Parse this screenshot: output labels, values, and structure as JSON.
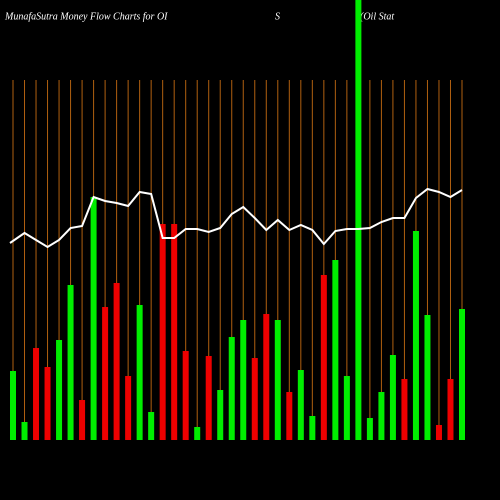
{
  "chart_data": {
    "type": "bar",
    "title_parts": [
      "MunafaSutra  Money Flow  Charts for OI",
      "S",
      "(Oil Stat"
    ],
    "categories": [
      null,
      null,
      null,
      null,
      null,
      null,
      null,
      null,
      null,
      null,
      null,
      null,
      null,
      null,
      null,
      null,
      null,
      null,
      null,
      null,
      null,
      null,
      null,
      null,
      null,
      null,
      null,
      null,
      null,
      null,
      null,
      null,
      null,
      null,
      null,
      null,
      null,
      null,
      null,
      null
    ],
    "values": [
      69,
      18,
      92,
      73,
      100,
      155,
      40,
      243,
      133,
      157,
      64,
      135,
      28,
      216,
      216,
      89,
      13,
      84,
      50,
      103,
      120,
      82,
      126,
      120,
      48,
      70,
      24,
      165,
      180,
      64,
      440,
      22,
      48,
      85,
      61,
      209,
      125,
      15,
      61,
      131
    ],
    "colors": [
      "#00ee00",
      "#00ee00",
      "#ee0000",
      "#ee0000",
      "#00ee00",
      "#00ee00",
      "#ee0000",
      "#00ee00",
      "#ee0000",
      "#ee0000",
      "#ee0000",
      "#00ee00",
      "#00ee00",
      "#ee0000",
      "#ee0000",
      "#ee0000",
      "#00ee00",
      "#ee0000",
      "#00ee00",
      "#00ee00",
      "#00ee00",
      "#ee0000",
      "#ee0000",
      "#00ee00",
      "#ee0000",
      "#00ee00",
      "#00ee00",
      "#ee0000",
      "#00ee00",
      "#00ee00",
      "#00ee00",
      "#00ee00",
      "#00ee00",
      "#00ee00",
      "#ee0000",
      "#00ee00",
      "#00ee00",
      "#ee0000",
      "#ee0000",
      "#00ee00"
    ],
    "line": {
      "color": "#ffffff",
      "values": [
        197,
        207,
        200,
        193,
        200,
        212,
        214,
        243,
        239,
        237,
        234,
        248,
        246,
        202,
        202,
        211,
        211,
        208,
        212,
        226,
        233,
        222,
        210,
        220,
        210,
        215,
        210,
        196,
        209,
        211,
        211,
        212,
        218,
        222,
        222,
        242,
        251,
        248,
        243,
        250
      ]
    },
    "gridline_color": "#b06010",
    "ylim": [
      0,
      440
    ]
  }
}
